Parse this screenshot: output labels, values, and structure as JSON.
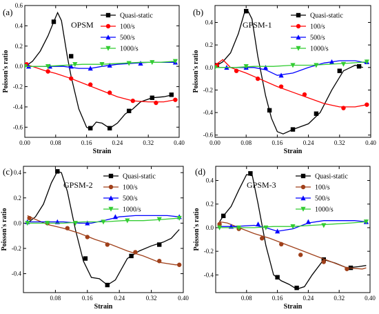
{
  "chart_data": [
    {
      "type": "line",
      "panel_label": "(a)",
      "title": "OPSM",
      "xlabel": "Strain",
      "ylabel": "Poisson's ratio",
      "xlim": [
        0.0,
        0.4
      ],
      "ylim": [
        -0.7,
        0.6
      ],
      "xticks": [
        "0.00",
        "0.08",
        "0.16",
        "0.24",
        "0.32",
        "0.40"
      ],
      "xtick_values": [
        0.0,
        0.08,
        0.16,
        0.24,
        0.32,
        0.4
      ],
      "yticks": [
        "-0.6",
        "-0.4",
        "-0.2",
        "0.0",
        "0.2",
        "0.4",
        "0.6"
      ],
      "ytick_values": [
        -0.6,
        -0.4,
        -0.2,
        0.0,
        0.2,
        0.4,
        0.6
      ],
      "legend_position": "top-right",
      "series": [
        {
          "name": "Quasi-static",
          "color": "#000000",
          "marker": "square",
          "x": [
            0.005,
            0.02,
            0.04,
            0.06,
            0.075,
            0.085,
            0.095,
            0.11,
            0.12,
            0.14,
            0.16,
            0.17,
            0.185,
            0.2,
            0.22,
            0.24,
            0.26,
            0.28,
            0.3,
            0.33,
            0.36,
            0.385
          ],
          "y": [
            0.01,
            0.05,
            0.15,
            0.3,
            0.44,
            0.53,
            0.45,
            0.1,
            -0.1,
            -0.42,
            -0.6,
            -0.62,
            -0.55,
            -0.56,
            -0.61,
            -0.56,
            -0.47,
            -0.42,
            -0.35,
            -0.31,
            -0.3,
            -0.28
          ],
          "marker_x": [
            0.075,
            0.12,
            0.17,
            0.22,
            0.27,
            0.33,
            0.38
          ],
          "marker_y": [
            0.44,
            0.1,
            -0.61,
            -0.61,
            -0.44,
            -0.31,
            -0.28
          ]
        },
        {
          "name": "100/s",
          "color": "#ff0000",
          "marker": "circle",
          "x": [
            0.0,
            0.02,
            0.05,
            0.08,
            0.12,
            0.16,
            0.2,
            0.24,
            0.28,
            0.32,
            0.36,
            0.39
          ],
          "y": [
            0.02,
            0.0,
            -0.04,
            -0.07,
            -0.12,
            -0.18,
            -0.24,
            -0.3,
            -0.34,
            -0.35,
            -0.35,
            -0.33
          ],
          "marker_x": [
            0.005,
            0.06,
            0.12,
            0.17,
            0.22,
            0.28,
            0.34,
            0.39
          ],
          "marker_y": [
            0.02,
            -0.05,
            -0.12,
            -0.18,
            -0.26,
            -0.34,
            -0.36,
            -0.33
          ]
        },
        {
          "name": "500/s",
          "color": "#0000ff",
          "marker": "triangle-up",
          "x": [
            0.0,
            0.05,
            0.1,
            0.14,
            0.17,
            0.2,
            0.24,
            0.28,
            0.32,
            0.36,
            0.39
          ],
          "y": [
            0.0,
            0.0,
            0.0,
            -0.02,
            -0.02,
            0.0,
            0.02,
            0.03,
            0.04,
            0.04,
            0.04
          ],
          "marker_x": [
            0.01,
            0.065,
            0.12,
            0.17,
            0.22,
            0.3,
            0.39
          ],
          "marker_y": [
            0.0,
            0.0,
            0.0,
            -0.02,
            0.01,
            0.03,
            0.04
          ]
        },
        {
          "name": "1000/s",
          "color": "#33cc33",
          "marker": "triangle-down",
          "x": [
            0.0,
            0.05,
            0.1,
            0.15,
            0.2,
            0.25,
            0.3,
            0.35,
            0.39
          ],
          "y": [
            0.0,
            0.0,
            0.01,
            0.02,
            0.02,
            0.03,
            0.04,
            0.04,
            0.05
          ],
          "marker_x": [
            0.0,
            0.06,
            0.13,
            0.2,
            0.27,
            0.33,
            0.39
          ],
          "marker_y": [
            0.0,
            0.0,
            0.02,
            0.02,
            0.03,
            0.04,
            0.05
          ]
        }
      ]
    },
    {
      "type": "line",
      "panel_label": "(b)",
      "title": "GPSM-1",
      "xlabel": "Strain",
      "ylabel": "Poisson's ratio",
      "xlim": [
        0.0,
        0.4
      ],
      "ylim": [
        -0.62,
        0.55
      ],
      "xticks": [
        "0.00",
        "0.08",
        "0.16",
        "0.24",
        "0.32",
        "0.40"
      ],
      "xtick_values": [
        0.0,
        0.08,
        0.16,
        0.24,
        0.32,
        0.4
      ],
      "yticks": [
        "-0.6",
        "-0.4",
        "-0.2",
        "0.0",
        "0.2",
        "0.4"
      ],
      "ytick_values": [
        -0.6,
        -0.4,
        -0.2,
        0.0,
        0.2,
        0.4
      ],
      "legend_position": "top-right",
      "series": [
        {
          "name": "Quasi-static",
          "color": "#000000",
          "marker": "square",
          "x": [
            0.005,
            0.02,
            0.04,
            0.06,
            0.075,
            0.085,
            0.095,
            0.11,
            0.13,
            0.145,
            0.16,
            0.175,
            0.2,
            0.24,
            0.27,
            0.3,
            0.33,
            0.36,
            0.38
          ],
          "y": [
            0.02,
            0.05,
            0.13,
            0.3,
            0.48,
            0.5,
            0.43,
            0.1,
            -0.25,
            -0.45,
            -0.57,
            -0.59,
            -0.55,
            -0.5,
            -0.4,
            -0.2,
            -0.03,
            0.02,
            0.0
          ],
          "marker_x": [
            0.005,
            0.08,
            0.14,
            0.2,
            0.26,
            0.32,
            0.37
          ],
          "marker_y": [
            0.02,
            0.5,
            -0.38,
            -0.55,
            -0.41,
            -0.03,
            0.01
          ]
        },
        {
          "name": "100/s",
          "color": "#ff0000",
          "marker": "circle",
          "x": [
            0.0,
            0.02,
            0.04,
            0.08,
            0.12,
            0.16,
            0.2,
            0.24,
            0.28,
            0.32,
            0.36,
            0.39
          ],
          "y": [
            0.02,
            0.07,
            0.0,
            -0.05,
            -0.11,
            -0.17,
            -0.22,
            -0.27,
            -0.32,
            -0.35,
            -0.35,
            -0.33
          ],
          "marker_x": [
            0.005,
            0.055,
            0.11,
            0.17,
            0.23,
            0.33,
            0.39
          ],
          "marker_y": [
            0.02,
            -0.03,
            -0.1,
            -0.17,
            -0.24,
            -0.36,
            -0.33
          ]
        },
        {
          "name": "500/s",
          "color": "#0000ff",
          "marker": "triangle-up",
          "x": [
            0.0,
            0.05,
            0.1,
            0.13,
            0.16,
            0.2,
            0.24,
            0.28,
            0.32,
            0.36,
            0.39
          ],
          "y": [
            0.0,
            0.0,
            0.0,
            -0.02,
            -0.07,
            -0.05,
            0.0,
            0.04,
            0.06,
            0.06,
            0.04
          ],
          "marker_x": [
            0.03,
            0.08,
            0.13,
            0.17,
            0.3,
            0.39
          ],
          "marker_y": [
            0.0,
            0.0,
            0.0,
            -0.07,
            0.05,
            0.05
          ]
        },
        {
          "name": "1000/s",
          "color": "#33cc33",
          "marker": "triangle-down",
          "x": [
            0.0,
            0.05,
            0.1,
            0.15,
            0.2,
            0.25,
            0.3,
            0.35,
            0.39
          ],
          "y": [
            0.0,
            0.0,
            0.01,
            0.01,
            0.02,
            0.02,
            0.03,
            0.04,
            0.05
          ],
          "marker_x": [
            0.0,
            0.08,
            0.2,
            0.26,
            0.33,
            0.39
          ],
          "marker_y": [
            0.0,
            0.01,
            0.02,
            0.02,
            0.03,
            0.05
          ]
        }
      ]
    },
    {
      "type": "line",
      "panel_label": "(c)",
      "title": "GPSM-2",
      "xlabel": "Strain",
      "ylabel": "Poisson's ratio",
      "xlim": [
        0.0,
        0.4
      ],
      "ylim": [
        -0.55,
        0.45
      ],
      "xticks": [
        "0.08",
        "0.16",
        "0.24",
        "0.32",
        "0.40"
      ],
      "xtick_values": [
        0.08,
        0.16,
        0.24,
        0.32,
        0.4
      ],
      "yticks": [
        "-0.4",
        "-0.2",
        "0.0",
        "0.2",
        "0.4"
      ],
      "ytick_values": [
        -0.4,
        -0.2,
        0.0,
        0.2,
        0.4
      ],
      "legend_position": "top-right",
      "series": [
        {
          "name": "Quasi-static",
          "color": "#000000",
          "marker": "square",
          "x": [
            0.01,
            0.03,
            0.05,
            0.07,
            0.085,
            0.095,
            0.11,
            0.13,
            0.15,
            0.17,
            0.19,
            0.21,
            0.23,
            0.26,
            0.29,
            0.32,
            0.35,
            0.37,
            0.39
          ],
          "y": [
            0.0,
            0.05,
            0.15,
            0.32,
            0.41,
            0.4,
            0.25,
            -0.05,
            -0.3,
            -0.43,
            -0.44,
            -0.49,
            -0.45,
            -0.28,
            -0.22,
            -0.18,
            -0.15,
            -0.12,
            -0.05
          ],
          "marker_x": [
            0.085,
            0.155,
            0.21,
            0.27,
            0.34
          ],
          "marker_y": [
            0.41,
            -0.28,
            -0.49,
            -0.26,
            -0.17
          ]
        },
        {
          "name": "100/s",
          "color": "#a0401a",
          "marker": "circle",
          "x": [
            0.01,
            0.03,
            0.06,
            0.1,
            0.14,
            0.18,
            0.22,
            0.26,
            0.3,
            0.34,
            0.38,
            0.39
          ],
          "y": [
            0.06,
            0.03,
            -0.01,
            -0.04,
            -0.08,
            -0.13,
            -0.17,
            -0.22,
            -0.26,
            -0.31,
            -0.33,
            -0.33
          ],
          "marker_x": [
            0.015,
            0.06,
            0.11,
            0.16,
            0.21,
            0.28,
            0.34,
            0.39
          ],
          "marker_y": [
            0.04,
            0.0,
            -0.04,
            -0.11,
            -0.17,
            -0.23,
            -0.3,
            -0.33
          ]
        },
        {
          "name": "500/s",
          "color": "#0000ff",
          "marker": "triangle-up",
          "x": [
            0.01,
            0.05,
            0.1,
            0.14,
            0.17,
            0.2,
            0.24,
            0.28,
            0.32,
            0.36,
            0.39
          ],
          "y": [
            0.01,
            0.01,
            0.01,
            0.0,
            0.0,
            0.02,
            0.05,
            0.06,
            0.06,
            0.06,
            0.05
          ],
          "marker_x": [
            0.01,
            0.085,
            0.16,
            0.23,
            0.39
          ],
          "marker_y": [
            0.01,
            0.01,
            0.0,
            0.05,
            0.05
          ]
        },
        {
          "name": "1000/s",
          "color": "#33cc33",
          "marker": "triangle-down",
          "x": [
            0.01,
            0.05,
            0.1,
            0.15,
            0.2,
            0.25,
            0.3,
            0.35,
            0.39
          ],
          "y": [
            0.0,
            0.0,
            0.0,
            0.01,
            0.01,
            0.02,
            0.02,
            0.03,
            0.04
          ],
          "marker_x": [
            0.01,
            0.06,
            0.13,
            0.2,
            0.26,
            0.34,
            0.39
          ],
          "marker_y": [
            0.0,
            0.0,
            0.0,
            0.01,
            0.02,
            0.03,
            0.04
          ]
        }
      ]
    },
    {
      "type": "line",
      "panel_label": "(d)",
      "title": "GPSM-3",
      "xlabel": "Strain",
      "ylabel": "Poisson's ratio",
      "xlim": [
        0.0,
        0.4
      ],
      "ylim": [
        -0.55,
        0.52
      ],
      "xticks": [
        "0.08",
        "0.16",
        "0.24",
        "0.32",
        "0.40"
      ],
      "xtick_values": [
        0.08,
        0.16,
        0.24,
        0.32,
        0.4
      ],
      "yticks": [
        "-0.4",
        "-0.2",
        "0.0",
        "0.2",
        "0.4"
      ],
      "ytick_values": [
        -0.4,
        -0.2,
        0.0,
        0.2,
        0.4
      ],
      "legend_position": "top-right",
      "series": [
        {
          "name": "Quasi-static",
          "color": "#000000",
          "marker": "square",
          "x": [
            0.01,
            0.02,
            0.04,
            0.06,
            0.08,
            0.095,
            0.11,
            0.13,
            0.15,
            0.17,
            0.19,
            0.21,
            0.23,
            0.25,
            0.28,
            0.31,
            0.34,
            0.37,
            0.39
          ],
          "y": [
            0.05,
            0.1,
            0.18,
            0.32,
            0.45,
            0.44,
            0.2,
            -0.15,
            -0.4,
            -0.45,
            -0.48,
            -0.52,
            -0.5,
            -0.4,
            -0.27,
            -0.3,
            -0.34,
            -0.33,
            -0.32
          ],
          "marker_x": [
            0.02,
            0.09,
            0.16,
            0.21,
            0.28,
            0.35
          ],
          "marker_y": [
            0.1,
            0.46,
            -0.42,
            -0.51,
            -0.27,
            -0.34
          ]
        },
        {
          "name": "100/s",
          "color": "#a0401a",
          "marker": "circle",
          "x": [
            0.01,
            0.03,
            0.06,
            0.1,
            0.14,
            0.18,
            0.22,
            0.26,
            0.3,
            0.34,
            0.38,
            0.39
          ],
          "y": [
            0.05,
            0.04,
            0.0,
            -0.05,
            -0.09,
            -0.14,
            -0.19,
            -0.24,
            -0.29,
            -0.34,
            -0.35,
            -0.34
          ],
          "marker_x": [
            0.01,
            0.06,
            0.12,
            0.17,
            0.22,
            0.28,
            0.34
          ],
          "marker_y": [
            0.03,
            -0.01,
            -0.09,
            -0.14,
            -0.23,
            -0.29,
            -0.35
          ]
        },
        {
          "name": "500/s",
          "color": "#0000ff",
          "marker": "triangle-up",
          "x": [
            0.01,
            0.05,
            0.1,
            0.13,
            0.16,
            0.2,
            0.24,
            0.28,
            0.32,
            0.36,
            0.39
          ],
          "y": [
            0.01,
            0.01,
            0.02,
            0.0,
            -0.03,
            -0.01,
            0.04,
            0.06,
            0.06,
            0.06,
            0.05
          ],
          "marker_x": [
            0.04,
            0.11,
            0.16,
            0.24,
            0.39
          ],
          "marker_y": [
            0.01,
            0.03,
            -0.03,
            0.05,
            0.05
          ]
        },
        {
          "name": "1000/s",
          "color": "#33cc33",
          "marker": "triangle-down",
          "x": [
            0.01,
            0.05,
            0.1,
            0.15,
            0.2,
            0.25,
            0.3,
            0.35,
            0.39
          ],
          "y": [
            0.0,
            0.0,
            0.0,
            0.01,
            0.01,
            0.02,
            0.03,
            0.04,
            0.05
          ],
          "marker_x": [
            0.01,
            0.06,
            0.13,
            0.2,
            0.28,
            0.39
          ],
          "marker_y": [
            0.0,
            0.0,
            0.0,
            0.01,
            0.02,
            0.05
          ]
        }
      ]
    }
  ]
}
